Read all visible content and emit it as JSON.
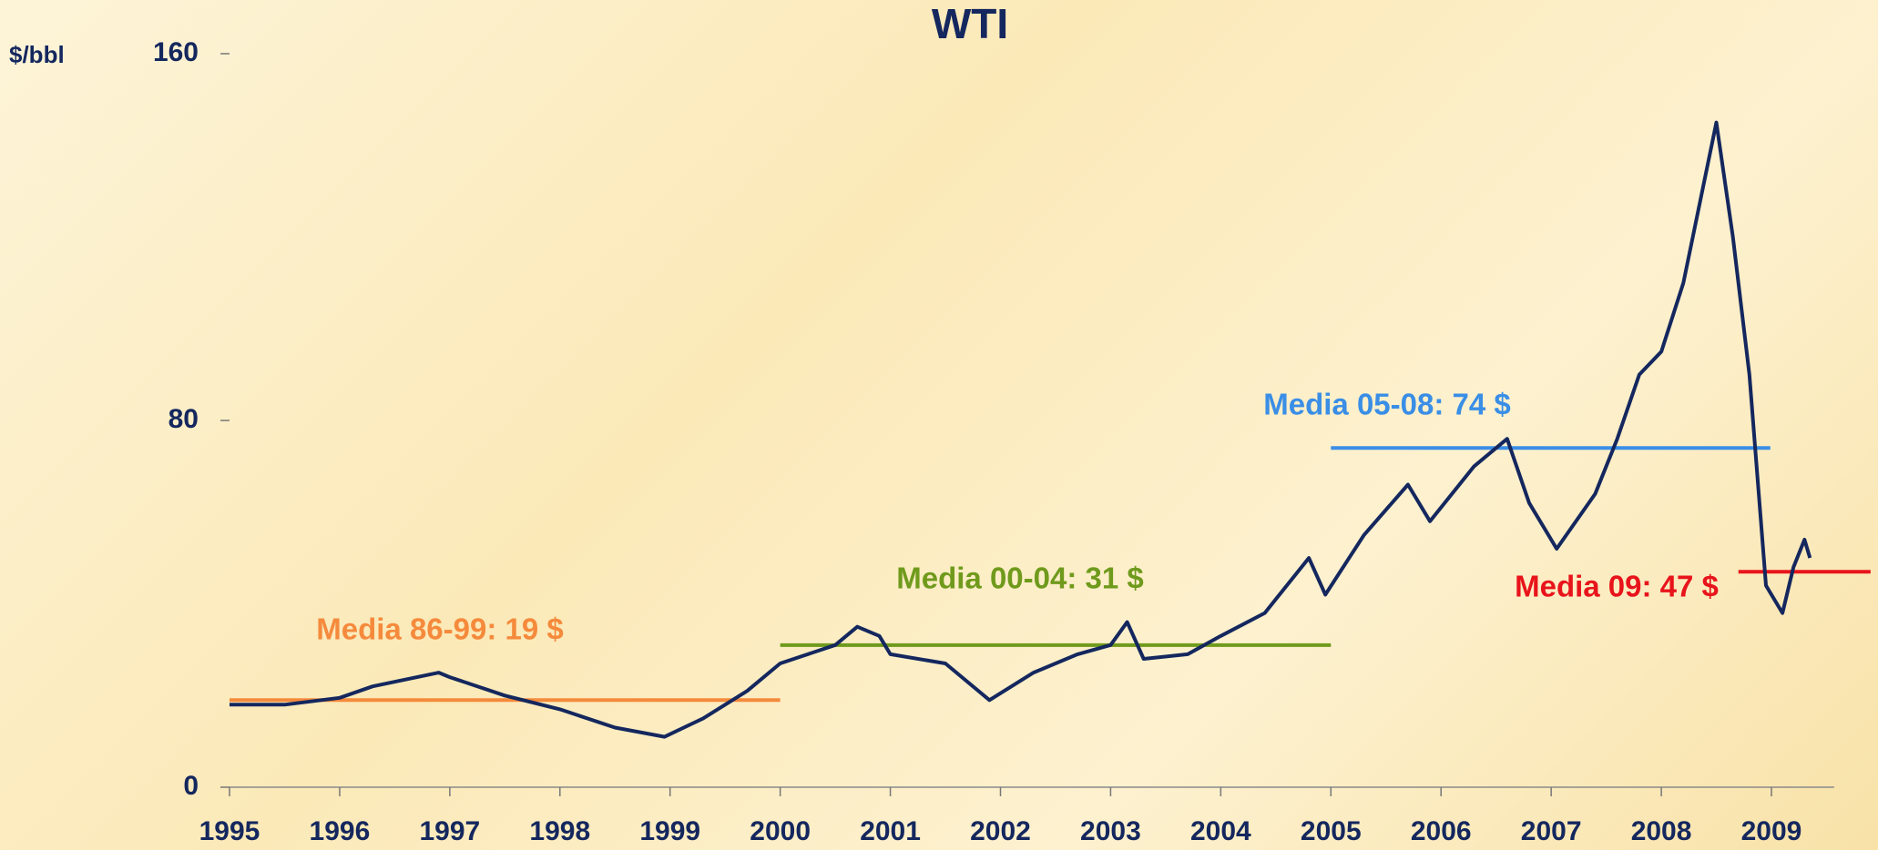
{
  "chart_data": {
    "type": "line",
    "title": "WTI",
    "y_label": "$/bbl",
    "x": [
      1995.0,
      1995.5,
      1996.0,
      1996.3,
      1996.9,
      1997.0,
      1997.5,
      1998.0,
      1998.5,
      1998.95,
      1999.3,
      1999.7,
      2000.0,
      2000.5,
      2000.7,
      2000.9,
      2001.0,
      2001.5,
      2001.9,
      2002.3,
      2002.7,
      2003.0,
      2003.15,
      2003.3,
      2003.7,
      2004.0,
      2004.4,
      2004.8,
      2004.95,
      2005.3,
      2005.7,
      2005.9,
      2006.3,
      2006.6,
      2006.8,
      2007.05,
      2007.4,
      2007.6,
      2007.8,
      2008.0,
      2008.2,
      2008.5,
      2008.65,
      2008.8,
      2008.95,
      2009.1,
      2009.2,
      2009.3,
      2009.35
    ],
    "series": [
      {
        "name": "WTI",
        "color": "#14275e",
        "values": [
          18,
          18,
          19.5,
          22,
          25,
          24,
          20,
          17,
          13,
          11,
          15,
          21,
          27,
          31,
          35,
          33,
          29,
          27,
          19,
          25,
          29,
          31,
          36,
          28,
          29,
          33,
          38,
          50,
          42,
          55,
          66,
          58,
          70,
          76,
          62,
          52,
          64,
          76,
          90,
          95,
          110,
          145,
          120,
          90,
          44,
          38,
          48,
          54,
          50
        ]
      }
    ],
    "reference_lines": [
      {
        "label": "Media 86-99: 19 $",
        "value": 19,
        "x_start": 1995,
        "x_end": 2000,
        "color": "#f58a3c"
      },
      {
        "label": "Media 00-04: 31 $",
        "value": 31,
        "x_start": 2000,
        "x_end": 2005,
        "color": "#6f9a1c"
      },
      {
        "label": "Media 05-08: 74 $",
        "value": 74,
        "x_start": 2005,
        "x_end": 2008.99,
        "color": "#3a8ee6"
      },
      {
        "label": "Media 09: 47 $",
        "value": 47,
        "x_start": 2008.7,
        "x_end": 2009.9,
        "color": "#e8141b"
      }
    ],
    "xlim": [
      1995,
      2009.9
    ],
    "xticks": [
      1995,
      1996,
      1997,
      1998,
      1999,
      2000,
      2001,
      2002,
      2003,
      2004,
      2005,
      2006,
      2007,
      2008,
      2009
    ],
    "ylim": [
      0,
      160
    ],
    "yticks": [
      0,
      80,
      160
    ]
  }
}
